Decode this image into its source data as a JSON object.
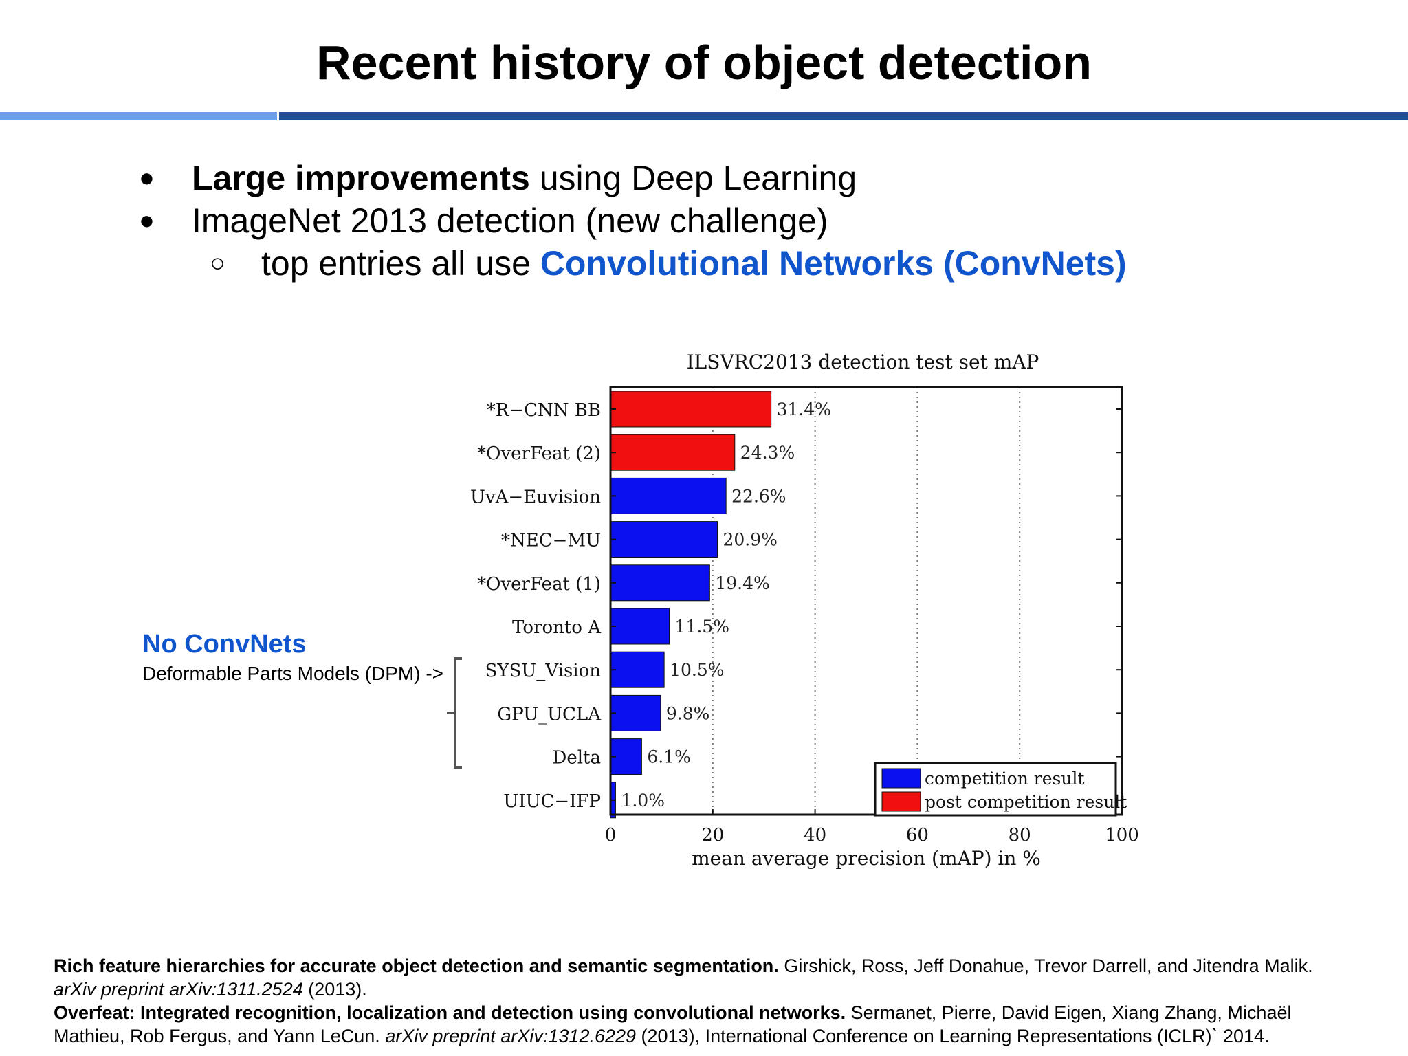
{
  "slide": {
    "title": "Recent history of object detection",
    "colors": {
      "rule_light": "#6d9eeb",
      "rule_dark": "#1f4e96",
      "accent": "#1155cc"
    }
  },
  "bullets": {
    "b1_bold": "Large improvements",
    "b1_rest": " using Deep Learning",
    "b2": "ImageNet 2013 detection (new challenge)",
    "sub_plain": "top entries all use ",
    "sub_accent": "Convolutional Networks (ConvNets)",
    "bullet_glyph": "●",
    "sub_glyph": "○"
  },
  "annotation": {
    "title": "No ConvNets",
    "subtitle": "Deformable Parts Models (DPM) ->"
  },
  "chart_data": {
    "type": "bar",
    "orientation": "horizontal",
    "title": "ILSVRC2013 detection test set mAP",
    "xlabel": "mean average precision (mAP) in %",
    "xlim": [
      0,
      100
    ],
    "xticks": [
      0,
      20,
      40,
      60,
      80,
      100
    ],
    "grid": "vertical dotted",
    "categories": [
      "*R−CNN BB",
      "*OverFeat (2)",
      "UvA−Euvision",
      "*NEC−MU",
      "*OverFeat (1)",
      "Toronto A",
      "SYSU_Vision",
      "GPU_UCLA",
      "Delta",
      "UIUC−IFP"
    ],
    "values": [
      31.4,
      24.3,
      22.6,
      20.9,
      19.4,
      11.5,
      10.5,
      9.8,
      6.1,
      1.0
    ],
    "value_labels": [
      "31.4%",
      "24.3%",
      "22.6%",
      "20.9%",
      "19.4%",
      "11.5%",
      "10.5%",
      "9.8%",
      "6.1%",
      "1.0%"
    ],
    "group": [
      "post",
      "post",
      "competition",
      "competition",
      "competition",
      "competition",
      "competition",
      "competition",
      "competition",
      "competition"
    ],
    "legend": [
      {
        "key": "competition",
        "label": "competition result",
        "color": "#0a10f0"
      },
      {
        "key": "post",
        "label": "post competition result",
        "color": "#f01010"
      }
    ],
    "legend_position": "bottom-right"
  },
  "references": [
    {
      "title": "Rich feature hierarchies for accurate object detection and semantic segmentation.",
      "authors": " Girshick, Ross, Jeff Donahue, Trevor Darrell, and Jitendra Malik.",
      "venue_italic": "arXiv preprint arXiv:1311.2524",
      "venue_rest": " (2013)."
    },
    {
      "title": "Overfeat: Integrated recognition, localization and detection using convolutional networks.",
      "authors": " Sermanet, Pierre, David Eigen, Xiang Zhang, Michaël",
      "authors_cont": "Mathieu, Rob Fergus, and Yann LeCun. ",
      "venue_italic": "arXiv preprint arXiv:1312.6229",
      "venue_rest": " (2013), International Conference on Learning Representations (ICLR)` 2014."
    }
  ]
}
